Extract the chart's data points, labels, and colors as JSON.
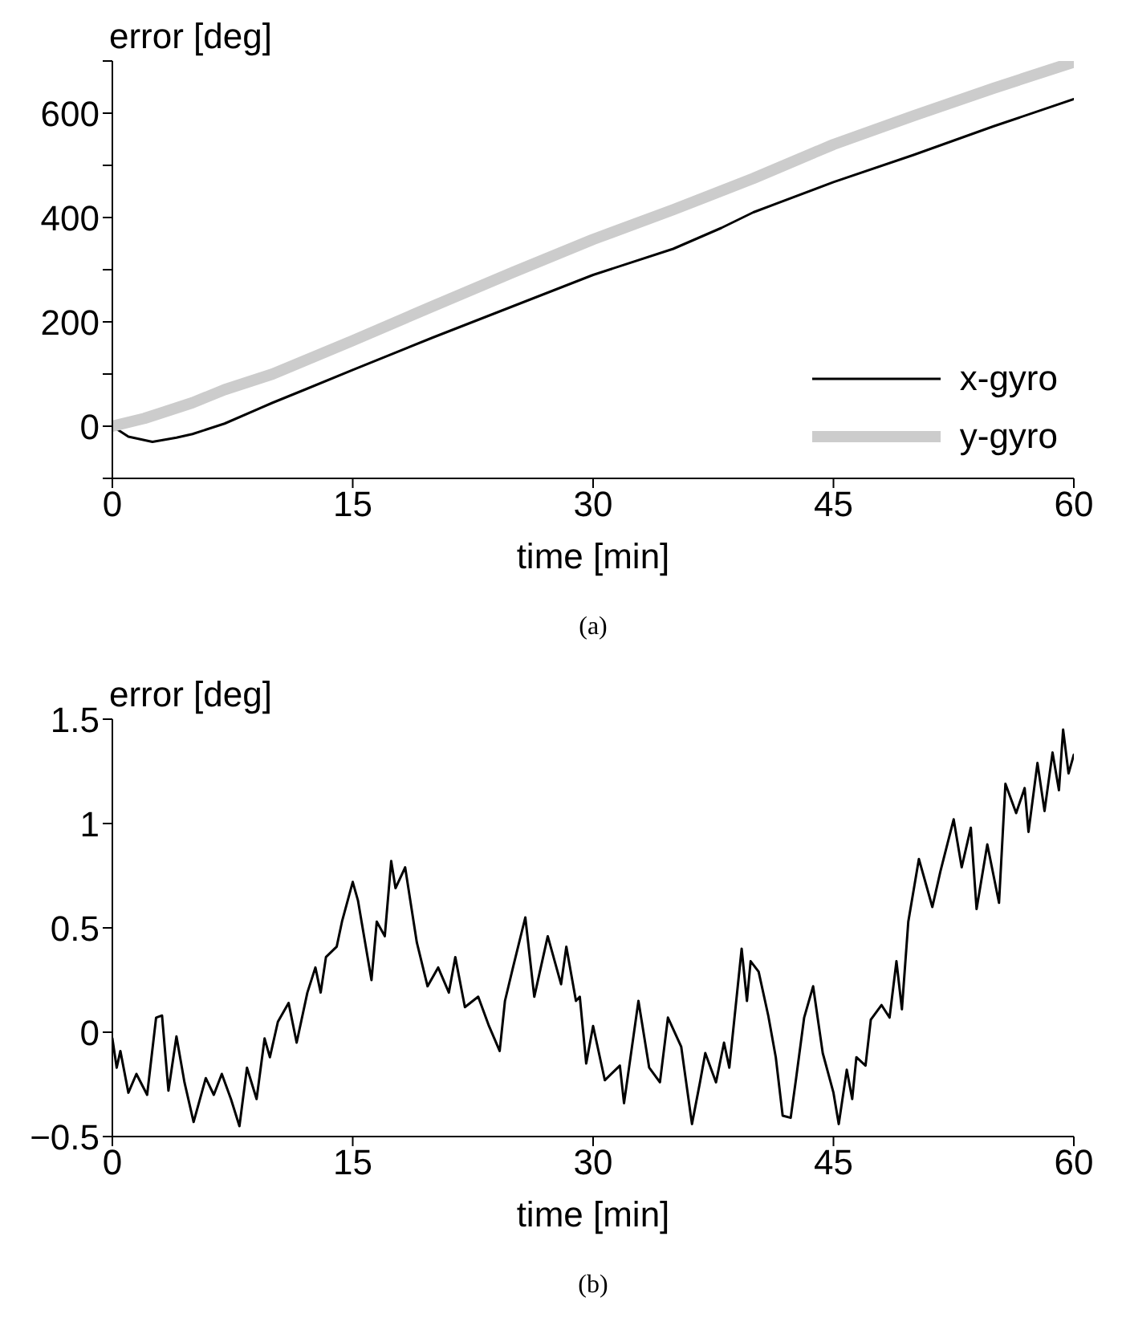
{
  "chart_data": [
    {
      "type": "line",
      "ylabel": "error [deg]",
      "xlabel": "time [min]",
      "annotations": [
        "(a)"
      ],
      "xlim": [
        0,
        60
      ],
      "xticks": [
        0,
        15,
        30,
        45,
        60
      ],
      "ylim": [
        -100,
        700
      ],
      "yticks": [
        {
          "value": -100,
          "label": null
        },
        0,
        {
          "value": 100,
          "label": null
        },
        200,
        {
          "value": 300,
          "label": null
        },
        400,
        {
          "value": 500,
          "label": null
        },
        600,
        {
          "value": 700,
          "label": null
        }
      ],
      "legend": "bottom right",
      "series": [
        {
          "name": "x-gyro",
          "color": "#000000",
          "x": [
            0,
            1,
            2.5,
            4,
            5,
            7,
            10,
            12,
            15,
            20,
            25,
            30,
            35,
            38,
            40,
            45,
            50,
            55,
            60
          ],
          "values": [
            0,
            -20,
            -30,
            -22,
            -15,
            5,
            45,
            70,
            108,
            170,
            230,
            290,
            340,
            380,
            410,
            468,
            520,
            575,
            627
          ]
        },
        {
          "name": "y-gyro",
          "color": "#cccccc",
          "x": [
            0,
            2,
            5,
            7,
            10,
            15,
            20,
            25,
            30,
            35,
            40,
            45,
            50,
            55,
            60
          ],
          "values": [
            0,
            15,
            45,
            70,
            100,
            164,
            230,
            295,
            358,
            415,
            475,
            540,
            595,
            648,
            698
          ]
        }
      ]
    },
    {
      "type": "line",
      "ylabel": "error [deg]",
      "xlabel": "time [min]",
      "annotations": [
        "(b)"
      ],
      "xlim": [
        0,
        60
      ],
      "xticks": [
        0,
        15,
        30,
        45,
        60
      ],
      "ylim": [
        -0.5,
        1.5
      ],
      "yticks": [
        -0.5,
        0,
        0.5,
        1,
        1.5
      ],
      "series": [
        {
          "color": "#000000",
          "x": [
            0,
            0.27,
            0.5,
            1.0,
            1.5,
            2.17,
            2.73,
            3.1,
            3.5,
            4.0,
            4.5,
            5.07,
            5.83,
            6.33,
            6.83,
            7.4,
            7.93,
            8.4,
            9.0,
            9.5,
            9.83,
            10.33,
            11.0,
            11.5,
            12.17,
            12.67,
            13.0,
            13.33,
            14.0,
            14.33,
            15.0,
            15.33,
            16.17,
            16.5,
            17.0,
            17.4,
            17.67,
            18.27,
            19.0,
            19.67,
            20.33,
            21.0,
            21.4,
            22.0,
            22.83,
            23.5,
            24.17,
            24.5,
            25.0,
            25.77,
            26.33,
            27.17,
            28.0,
            28.33,
            28.93,
            29.17,
            29.57,
            30.0,
            30.73,
            31.67,
            31.93,
            32.83,
            33.5,
            34.17,
            34.67,
            35.5,
            36.17,
            36.67,
            37.0,
            37.67,
            38.17,
            38.5,
            39.27,
            39.6,
            39.83,
            40.33,
            40.93,
            41.4,
            41.83,
            42.33,
            42.67,
            43.17,
            43.73,
            44.33,
            45.0,
            45.33,
            45.83,
            46.17,
            46.43,
            47.0,
            47.33,
            48.0,
            48.5,
            48.93,
            49.27,
            49.67,
            50.33,
            51.17,
            51.67,
            52.5,
            53.0,
            53.57,
            53.93,
            54.6,
            55.33,
            55.73,
            56.4,
            56.93,
            57.17,
            57.73,
            58.17,
            58.67,
            59.07,
            59.33,
            59.67,
            60.0
          ],
          "values": [
            -0.03,
            -0.17,
            -0.09,
            -0.29,
            -0.2,
            -0.3,
            0.07,
            0.08,
            -0.28,
            -0.02,
            -0.24,
            -0.43,
            -0.22,
            -0.3,
            -0.2,
            -0.32,
            -0.45,
            -0.17,
            -0.32,
            -0.03,
            -0.12,
            0.05,
            0.14,
            -0.05,
            0.19,
            0.31,
            0.19,
            0.36,
            0.41,
            0.53,
            0.72,
            0.63,
            0.25,
            0.53,
            0.46,
            0.82,
            0.69,
            0.79,
            0.43,
            0.22,
            0.31,
            0.19,
            0.36,
            0.12,
            0.17,
            0.03,
            -0.09,
            0.15,
            0.31,
            0.55,
            0.17,
            0.46,
            0.23,
            0.41,
            0.15,
            0.17,
            -0.15,
            0.03,
            -0.23,
            -0.16,
            -0.34,
            0.15,
            -0.17,
            -0.24,
            0.07,
            -0.07,
            -0.44,
            -0.24,
            -0.1,
            -0.24,
            -0.05,
            -0.17,
            0.4,
            0.15,
            0.34,
            0.29,
            0.08,
            -0.12,
            -0.4,
            -0.41,
            -0.22,
            0.07,
            0.22,
            -0.1,
            -0.29,
            -0.44,
            -0.18,
            -0.32,
            -0.12,
            -0.16,
            0.06,
            0.13,
            0.07,
            0.34,
            0.11,
            0.53,
            0.83,
            0.6,
            0.77,
            1.02,
            0.79,
            0.98,
            0.59,
            0.9,
            0.62,
            1.19,
            1.05,
            1.17,
            0.96,
            1.29,
            1.06,
            1.34,
            1.16,
            1.45,
            1.24,
            1.33
          ]
        }
      ]
    }
  ]
}
